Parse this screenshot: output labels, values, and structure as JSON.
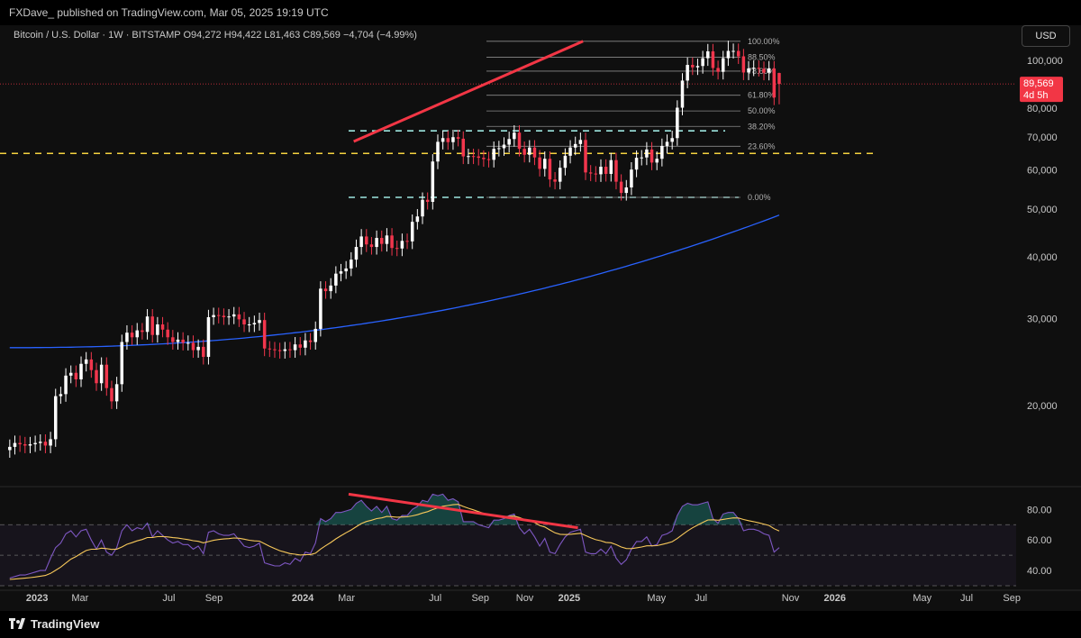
{
  "header": {
    "published_line": "FXDave_ published on TradingView.com, Mar 05, 2025 19:19 UTC"
  },
  "symbol": {
    "name": "Bitcoin / U.S. Dollar · 1W · BITSTAMP",
    "o_label": "O",
    "open": "94,272",
    "h_label": "H",
    "high": "94,422",
    "l_label": "L",
    "low": "81,463",
    "c_label": "C",
    "close": "89,569",
    "change": "−4,704 (−4.99%)"
  },
  "currency_button": "USD",
  "price_tag": {
    "price": "89,569",
    "countdown": "4d 5h"
  },
  "brand": {
    "name": "TradingView"
  },
  "colors": {
    "up_candle": "#ffffff",
    "down_candle": "#f2364d",
    "trendline": "#f23645",
    "ma": "#2962ff",
    "rsi": "#7e57c2",
    "rsi_ma": "#f7c85a",
    "yellow_level": "#f5d33f",
    "cyan_level": "#9ee7e0"
  },
  "chart_data": [
    {
      "type": "candlestick",
      "title": "Bitcoin / U.S. Dollar · 1W · BITSTAMP",
      "y_scale": "log",
      "ylim": [
        14000,
        112000
      ],
      "y_ticks": [
        "100,000",
        "80,000",
        "70,000",
        "60,000",
        "50,000",
        "40,000",
        "30,000",
        "20,000"
      ],
      "y_tick_values": [
        100000,
        80000,
        70000,
        60000,
        50000,
        40000,
        30000,
        20000
      ],
      "x_range": [
        "2022-11-21",
        "2026-09-07"
      ],
      "x_ticks": [
        "2023",
        "Mar",
        "Jul",
        "Sep",
        "2024",
        "Mar",
        "Jul",
        "Sep",
        "Nov",
        "2025",
        "May",
        "Jul",
        "Nov",
        "2026",
        "May",
        "Jul",
        "Sep"
      ],
      "x_tick_dates": [
        "2023-01-01",
        "2023-03-01",
        "2023-07-01",
        "2023-09-01",
        "2024-01-01",
        "2024-03-01",
        "2024-07-01",
        "2024-09-01",
        "2024-11-01",
        "2025-01-01",
        "2025-05-01",
        "2025-07-01",
        "2025-11-01",
        "2026-01-01",
        "2026-05-01",
        "2026-07-01",
        "2026-09-01"
      ],
      "x_ticks_bold": [
        true,
        false,
        false,
        false,
        true,
        false,
        false,
        false,
        false,
        true,
        false,
        false,
        false,
        true,
        false,
        false,
        false
      ],
      "weekly_close": [
        16500,
        16800,
        16700,
        16600,
        16700,
        16800,
        16900,
        16600,
        17100,
        20900,
        21100,
        23000,
        23300,
        22600,
        24300,
        24800,
        23600,
        22200,
        24200,
        21700,
        20400,
        22100,
        26900,
        28100,
        27500,
        28400,
        28200,
        30300,
        27800,
        29200,
        28500,
        27500,
        26900,
        27200,
        26800,
        26800,
        25900,
        26300,
        25100,
        30200,
        30500,
        30400,
        30200,
        30300,
        30600,
        29900,
        29200,
        29200,
        29400,
        29800,
        26100,
        26000,
        25900,
        25800,
        26000,
        25900,
        26600,
        26200,
        27100,
        26900,
        28600,
        34500,
        34100,
        35000,
        37000,
        37400,
        37900,
        39500,
        41900,
        44000,
        42400,
        41900,
        43700,
        42500,
        44200,
        41700,
        41600,
        43100,
        43000,
        47100,
        48300,
        52200,
        51700,
        62400,
        68400,
        69600,
        68300,
        69900,
        69400,
        63900,
        64000,
        63900,
        63500,
        63100,
        62900,
        66200,
        66400,
        67500,
        69300,
        71400,
        66200,
        64400,
        66600,
        63600,
        60300,
        63200,
        57400,
        56800,
        60600,
        64100,
        66600,
        67700,
        69000,
        59300,
        59000,
        58800,
        60900,
        58900,
        62800,
        56800,
        53900,
        55300,
        60100,
        63500,
        63600,
        66000,
        62100,
        63200,
        67100,
        68400,
        69600,
        80200,
        91000,
        97900,
        96800,
        97400,
        101000,
        104300,
        96500,
        94800,
        101000,
        104500,
        104500,
        101900,
        94500,
        96300,
        96600,
        96100,
        94400,
        96300,
        84100,
        89600
      ],
      "weekly_high_low": {
        "peak_week": {
          "high": 109600
        },
        "last_week": {
          "open": 94272,
          "high": 94422,
          "low": 81463,
          "close": 89569
        }
      },
      "moving_average": {
        "start": 26200,
        "end": 48600
      },
      "current_price": "89,569",
      "countdown": "4d 5h",
      "horizontal_levels": [
        {
          "price": 64800,
          "style": "dashed",
          "color": "#f5d33f"
        },
        {
          "price": 72000,
          "style": "dashed",
          "color": "#9ee7e0"
        },
        {
          "price": 52800,
          "style": "dashed",
          "color": "#9ee7e0"
        }
      ],
      "fibonacci": {
        "levels": [
          {
            "label": "100.00%",
            "price": 109300
          },
          {
            "label": "88.50%",
            "price": 101500
          },
          {
            "label": "78.60%",
            "price": 95100
          },
          {
            "label": "61.80%",
            "price": 85000
          },
          {
            "label": "50.00%",
            "price": 79000
          },
          {
            "label": "38.20%",
            "price": 73500
          },
          {
            "label": "23.60%",
            "price": 67000
          },
          {
            "label": "0.00%",
            "price": 52800
          }
        ]
      },
      "trendlines": [
        {
          "from": [
            "2024-03-11",
            68500
          ],
          "to": [
            "2025-01-20",
            109300
          ],
          "color": "#f23645"
        }
      ]
    },
    {
      "type": "line",
      "indicator": "RSI",
      "ylim": [
        30,
        92
      ],
      "y_ticks": [
        "80.00",
        "60.00",
        "40.00"
      ],
      "y_tick_values": [
        80,
        60,
        40
      ],
      "bands": {
        "upper": 70,
        "middle": 50,
        "lower": 30
      },
      "rsi_values": [
        35,
        36,
        37,
        37,
        38,
        39,
        40,
        40,
        48,
        55,
        58,
        64,
        66,
        62,
        66,
        67,
        60,
        54,
        60,
        52,
        50,
        55,
        66,
        70,
        66,
        68,
        67,
        71,
        62,
        66,
        63,
        60,
        58,
        59,
        57,
        57,
        54,
        56,
        51,
        65,
        66,
        64,
        63,
        63,
        64,
        60,
        56,
        55,
        56,
        58,
        45,
        44,
        43,
        43,
        45,
        44,
        48,
        46,
        52,
        51,
        58,
        74,
        72,
        74,
        78,
        78,
        79,
        80,
        84,
        86,
        82,
        79,
        82,
        78,
        82,
        74,
        73,
        76,
        76,
        80,
        82,
        86,
        85,
        90,
        89,
        90,
        86,
        87,
        85,
        72,
        72,
        72,
        70,
        69,
        68,
        73,
        73,
        74,
        76,
        77,
        68,
        64,
        67,
        62,
        56,
        61,
        52,
        51,
        57,
        62,
        65,
        66,
        67,
        52,
        51,
        51,
        54,
        51,
        56,
        48,
        44,
        47,
        54,
        59,
        59,
        62,
        56,
        57,
        63,
        64,
        66,
        76,
        82,
        84,
        83,
        83,
        84,
        85,
        74,
        71,
        77,
        78,
        78,
        74,
        66,
        67,
        67,
        66,
        64,
        63,
        52,
        55
      ],
      "rsi_ma_start": 34,
      "divergence_line": {
        "from": 90,
        "to": 68,
        "color": "#f23645"
      }
    }
  ]
}
